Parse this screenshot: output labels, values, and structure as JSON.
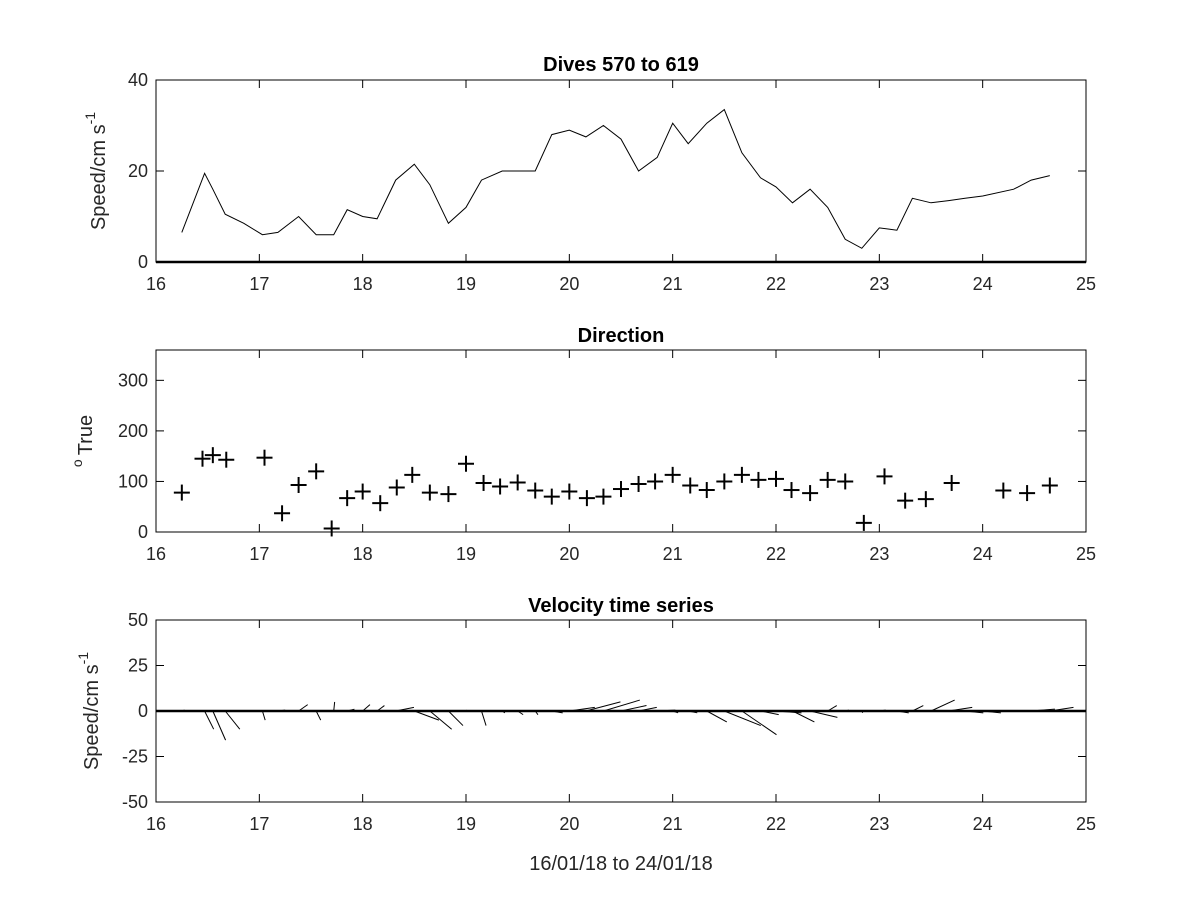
{
  "chart_data": [
    {
      "type": "line",
      "title": "Dives 570 to 619",
      "xlabel": "",
      "ylabel": "Speed/cm s",
      "ylabel_superscript": "-1",
      "xlim": [
        16,
        25
      ],
      "ylim": [
        0,
        40
      ],
      "x_ticks": [
        16,
        17,
        18,
        19,
        20,
        21,
        22,
        23,
        24,
        25
      ],
      "y_ticks": [
        0,
        20,
        40
      ],
      "grid": false,
      "series": [
        {
          "x": [
            16.25,
            16.47,
            16.55,
            16.67,
            16.85,
            17.03,
            17.18,
            17.38,
            17.55,
            17.72,
            17.85,
            18.0,
            18.14,
            18.32,
            18.5,
            18.65,
            18.83,
            19.0,
            19.15,
            19.35,
            19.5,
            19.67,
            19.83,
            20.0,
            20.16,
            20.33,
            20.5,
            20.67,
            20.85,
            21.0,
            21.15,
            21.33,
            21.5,
            21.67,
            21.85,
            22.0,
            22.16,
            22.33,
            22.5,
            22.67,
            22.83,
            23.0,
            23.17,
            23.32,
            23.5,
            23.67,
            23.83,
            24.0,
            24.3,
            24.47,
            24.65
          ],
          "y": [
            6.5,
            19.5,
            16,
            10.5,
            8.5,
            6,
            6.5,
            10,
            6,
            6,
            11.5,
            10,
            9.5,
            18,
            21.5,
            17,
            8.5,
            12,
            18,
            20,
            20,
            20,
            28,
            29,
            27.5,
            30,
            27,
            20,
            23,
            30.5,
            26,
            30.5,
            33.5,
            24,
            18.5,
            16.5,
            13,
            16,
            12,
            5,
            3,
            7.5,
            7,
            14,
            13,
            13.5,
            14,
            14.5,
            16,
            18,
            19
          ]
        }
      ]
    },
    {
      "type": "scatter",
      "title": "Direction",
      "xlabel": "",
      "ylabel": "True",
      "ylabel_prefix": "o",
      "xlim": [
        16,
        25
      ],
      "ylim": [
        0,
        360
      ],
      "x_ticks": [
        16,
        17,
        18,
        19,
        20,
        21,
        22,
        23,
        24,
        25
      ],
      "y_ticks": [
        0,
        100,
        200,
        300
      ],
      "marker": "+",
      "grid": false,
      "series": [
        {
          "x": [
            16.25,
            16.45,
            16.55,
            16.68,
            17.05,
            17.22,
            17.38,
            17.55,
            17.7,
            17.85,
            18.0,
            18.17,
            18.33,
            18.48,
            18.65,
            18.83,
            19.0,
            19.17,
            19.33,
            19.5,
            19.67,
            19.83,
            20.0,
            20.17,
            20.33,
            20.5,
            20.67,
            20.83,
            21.0,
            21.17,
            21.33,
            21.5,
            21.67,
            21.83,
            22.0,
            22.15,
            22.33,
            22.5,
            22.67,
            22.85,
            23.05,
            23.25,
            23.45,
            23.7,
            24.2,
            24.43,
            24.65
          ],
          "y": [
            78,
            145,
            152,
            143,
            147,
            37,
            93,
            120,
            7,
            67,
            80,
            57,
            88,
            113,
            78,
            75,
            135,
            97,
            90,
            98,
            82,
            70,
            80,
            67,
            70,
            85,
            95,
            100,
            113,
            92,
            83,
            100,
            113,
            103,
            105,
            83,
            77,
            103,
            100,
            18,
            110,
            62,
            65,
            97,
            82,
            77,
            92
          ]
        }
      ]
    },
    {
      "type": "line",
      "title": "Velocity time series",
      "xlabel": "16/01/18 to 24/01/18",
      "ylabel": "Speed/cm s",
      "ylabel_superscript": "-1",
      "xlim": [
        16,
        25
      ],
      "ylim": [
        -50,
        50
      ],
      "x_ticks": [
        16,
        17,
        18,
        19,
        20,
        21,
        22,
        23,
        24,
        25
      ],
      "y_ticks": [
        -50,
        -25,
        0,
        25,
        50
      ],
      "grid": false,
      "note_type": "stick plot",
      "series": [
        {
          "x": [
            16.25,
            16.47,
            16.55,
            16.67,
            17.03,
            17.18,
            17.38,
            17.55,
            17.72,
            17.85,
            18.0,
            18.14,
            18.32,
            18.5,
            18.65,
            18.83,
            19.0,
            19.15,
            19.35,
            19.5,
            19.67,
            19.83,
            20.0,
            20.16,
            20.33,
            20.5,
            20.67,
            20.85,
            21.0,
            21.15,
            21.33,
            21.5,
            21.67,
            21.85,
            22.0,
            22.16,
            22.33,
            22.5,
            22.67,
            22.83,
            23.0,
            23.17,
            23.32,
            23.5,
            23.67,
            23.83,
            24.0,
            24.47,
            24.65
          ],
          "u": [
            1.5,
            5,
            7,
            8,
            1.5,
            4,
            5,
            2.5,
            0.5,
            4,
            4,
            4,
            10,
            13.5,
            12,
            8,
            0.5,
            2.5,
            1.5,
            3,
            1.5,
            6,
            14,
            19,
            20,
            14,
            10,
            10,
            3,
            5,
            11,
            20,
            19,
            10,
            14,
            12,
            15,
            5,
            2,
            0.5,
            3.5,
            6.5,
            6,
            13,
            13,
            10,
            10,
            13,
            13
          ],
          "v": [
            0.5,
            -10,
            -16,
            -10,
            -5,
            0.5,
            3.5,
            -5,
            5,
            1,
            3.5,
            3,
            2,
            -5,
            -10,
            -8,
            0.5,
            -8,
            -1,
            -2,
            -2,
            -1,
            2,
            5,
            6,
            3,
            2,
            0.5,
            -1,
            -1,
            -6,
            -8,
            -13,
            -2,
            -1,
            -6,
            -3.5,
            3,
            0.5,
            -1,
            0.5,
            -1,
            3,
            6,
            2,
            -1,
            -1,
            1,
            2
          ]
        }
      ]
    }
  ]
}
